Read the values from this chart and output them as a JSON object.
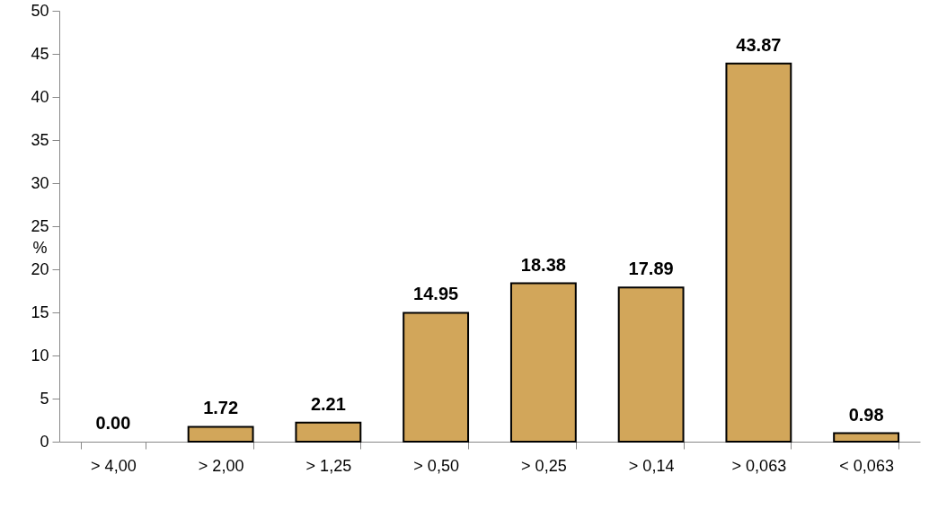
{
  "chart_data": {
    "type": "bar",
    "ylabel": "%",
    "categories": [
      ">  4,00",
      ">  2,00",
      ">  1,25",
      ">  0,50",
      ">  0,25",
      ">  0,14",
      ">  0,063",
      "<  0,063"
    ],
    "values": [
      0.0,
      1.72,
      2.21,
      14.95,
      18.38,
      17.89,
      43.87,
      0.98
    ],
    "color": "#d2a65a",
    "ylim": [
      0,
      50
    ],
    "yticks": [
      0,
      5,
      10,
      15,
      20,
      25,
      30,
      35,
      40,
      45,
      50
    ],
    "grid": false,
    "value_labels": [
      "0.00",
      "1.72",
      "2.21",
      "14.95",
      "18.38",
      "17.89",
      "43.87",
      "0.98"
    ]
  }
}
